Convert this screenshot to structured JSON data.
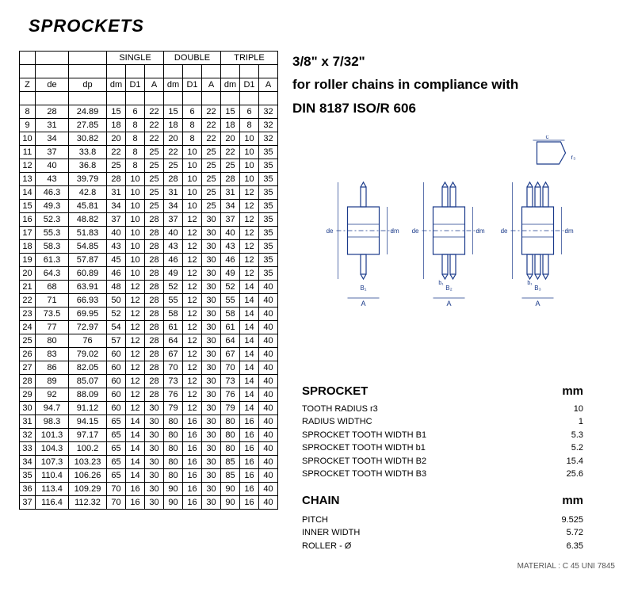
{
  "title": "SPROCKETS",
  "table": {
    "group_headers": [
      "SINGLE",
      "DOUBLE",
      "TRIPLE"
    ],
    "sub_headers": [
      "Z",
      "de",
      "dp",
      "dm",
      "D1",
      "A",
      "dm",
      "D1",
      "A",
      "dm",
      "D1",
      "A"
    ],
    "rows": [
      [
        8,
        28,
        24.89,
        15,
        6,
        22,
        15,
        6,
        22,
        15,
        6,
        32
      ],
      [
        9,
        31,
        27.85,
        18,
        8,
        22,
        18,
        8,
        22,
        18,
        8,
        32
      ],
      [
        10,
        34,
        30.82,
        20,
        8,
        22,
        20,
        8,
        22,
        20,
        10,
        32
      ],
      [
        11,
        37,
        33.8,
        22,
        8,
        25,
        22,
        10,
        25,
        22,
        10,
        35
      ],
      [
        12,
        40,
        36.8,
        25,
        8,
        25,
        25,
        10,
        25,
        25,
        10,
        35
      ],
      [
        13,
        43,
        39.79,
        28,
        10,
        25,
        28,
        10,
        25,
        28,
        10,
        35
      ],
      [
        14,
        46.3,
        42.8,
        31,
        10,
        25,
        31,
        10,
        25,
        31,
        12,
        35
      ],
      [
        15,
        49.3,
        45.81,
        34,
        10,
        25,
        34,
        10,
        25,
        34,
        12,
        35
      ],
      [
        16,
        52.3,
        48.82,
        37,
        10,
        28,
        37,
        12,
        30,
        37,
        12,
        35
      ],
      [
        17,
        55.3,
        51.83,
        40,
        10,
        28,
        40,
        12,
        30,
        40,
        12,
        35
      ],
      [
        18,
        58.3,
        54.85,
        43,
        10,
        28,
        43,
        12,
        30,
        43,
        12,
        35
      ],
      [
        19,
        61.3,
        57.87,
        45,
        10,
        28,
        46,
        12,
        30,
        46,
        12,
        35
      ],
      [
        20,
        64.3,
        60.89,
        46,
        10,
        28,
        49,
        12,
        30,
        49,
        12,
        35
      ],
      [
        21,
        68,
        63.91,
        48,
        12,
        28,
        52,
        12,
        30,
        52,
        14,
        40
      ],
      [
        22,
        71,
        66.93,
        50,
        12,
        28,
        55,
        12,
        30,
        55,
        14,
        40
      ],
      [
        23,
        73.5,
        69.95,
        52,
        12,
        28,
        58,
        12,
        30,
        58,
        14,
        40
      ],
      [
        24,
        77,
        72.97,
        54,
        12,
        28,
        61,
        12,
        30,
        61,
        14,
        40
      ],
      [
        25,
        80,
        76,
        57,
        12,
        28,
        64,
        12,
        30,
        64,
        14,
        40
      ],
      [
        26,
        83,
        79.02,
        60,
        12,
        28,
        67,
        12,
        30,
        67,
        14,
        40
      ],
      [
        27,
        86,
        82.05,
        60,
        12,
        28,
        70,
        12,
        30,
        70,
        14,
        40
      ],
      [
        28,
        89,
        85.07,
        60,
        12,
        28,
        73,
        12,
        30,
        73,
        14,
        40
      ],
      [
        29,
        92,
        88.09,
        60,
        12,
        28,
        76,
        12,
        30,
        76,
        14,
        40
      ],
      [
        30,
        94.7,
        91.12,
        60,
        12,
        30,
        79,
        12,
        30,
        79,
        14,
        40
      ],
      [
        31,
        98.3,
        94.15,
        65,
        14,
        30,
        80,
        16,
        30,
        80,
        16,
        40
      ],
      [
        32,
        101.3,
        97.17,
        65,
        14,
        30,
        80,
        16,
        30,
        80,
        16,
        40
      ],
      [
        33,
        104.3,
        100.2,
        65,
        14,
        30,
        80,
        16,
        30,
        80,
        16,
        40
      ],
      [
        34,
        107.3,
        103.23,
        65,
        14,
        30,
        80,
        16,
        30,
        85,
        16,
        40
      ],
      [
        35,
        110.4,
        106.26,
        65,
        14,
        30,
        80,
        16,
        30,
        85,
        16,
        40
      ],
      [
        36,
        113.4,
        109.29,
        70,
        16,
        30,
        90,
        16,
        30,
        90,
        16,
        40
      ],
      [
        37,
        116.4,
        112.32,
        70,
        16,
        30,
        90,
        16,
        30,
        90,
        16,
        40
      ]
    ]
  },
  "right": {
    "size": "3/8\" x 7/32\"",
    "desc": "for roller chains in compliance with",
    "std": "DIN 8187 ISO/R 606",
    "sprocket_heading": "SPROCKET",
    "mm": "mm",
    "sprocket_specs": [
      {
        "label": "TOOTH RADIUS r3",
        "val": "10"
      },
      {
        "label": "RADIUS WIDTHC",
        "val": "1"
      },
      {
        "label": "SPROCKET TOOTH WIDTH B1",
        "val": "5.3"
      },
      {
        "label": "SPROCKET TOOTH WIDTH b1",
        "val": "5.2"
      },
      {
        "label": "SPROCKET TOOTH WIDTH B2",
        "val": "15.4"
      },
      {
        "label": "SPROCKET TOOTH WIDTH B3",
        "val": "25.6"
      }
    ],
    "chain_heading": "CHAIN",
    "chain_specs": [
      {
        "label": "PITCH",
        "val": "9.525"
      },
      {
        "label": "INNER WIDTH",
        "val": "5.72"
      },
      {
        "label": "ROLLER - Ø",
        "val": "6.35"
      }
    ],
    "material": "MATERIAL : C 45 UNI 7845"
  },
  "diagram": {
    "stroke": "#1a3a8a",
    "stroke_width": 1.2
  }
}
